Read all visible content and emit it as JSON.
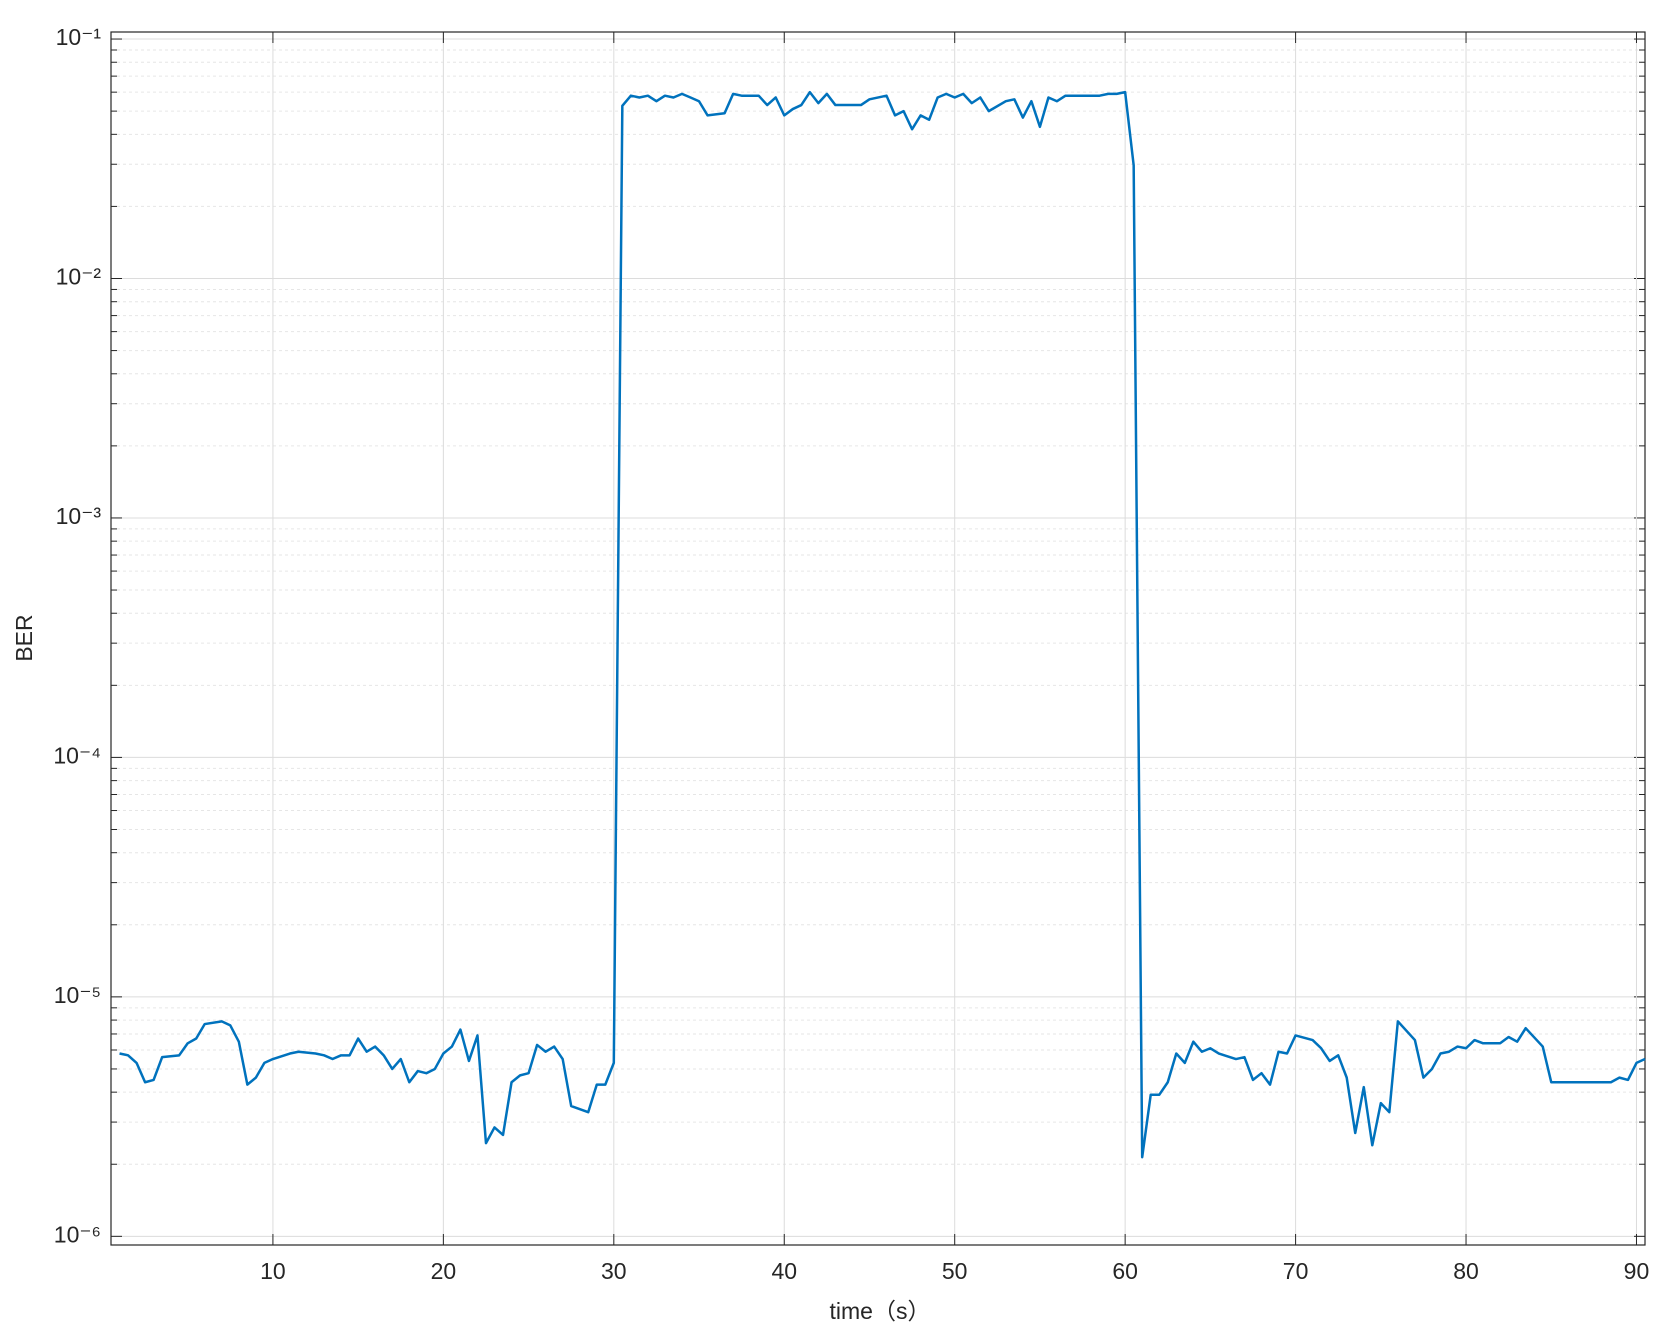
{
  "chart_data": {
    "type": "line",
    "xlabel": "time（s）",
    "ylabel": "BER",
    "log_y": true,
    "grid": true,
    "minor_grid": true,
    "xlim": [
      0.5,
      90.5
    ],
    "xticks": [
      10,
      20,
      30,
      40,
      50,
      60,
      70,
      80,
      90
    ],
    "ylim": [
      9.2e-07,
      0.107
    ],
    "yticks": [
      {
        "value": 1e-06,
        "label": "10⁻⁶"
      },
      {
        "value": 1e-05,
        "label": "10⁻⁵"
      },
      {
        "value": 0.0001,
        "label": "10⁻⁴"
      },
      {
        "value": 0.001,
        "label": "10⁻³"
      },
      {
        "value": 0.01,
        "label": "10⁻²"
      },
      {
        "value": 0.1,
        "label": "10⁻¹"
      }
    ],
    "x": [
      1.0,
      1.5,
      2.0,
      2.5,
      3.0,
      3.5,
      4.5,
      5.0,
      5.5,
      6.0,
      7.0,
      7.5,
      8.0,
      8.5,
      9.0,
      9.5,
      10.0,
      11.0,
      11.5,
      12.5,
      13.0,
      13.5,
      14.0,
      14.5,
      15.0,
      15.5,
      16.0,
      16.5,
      17.0,
      17.5,
      18.0,
      18.5,
      19.0,
      19.5,
      20.0,
      20.5,
      21.0,
      21.5,
      22.0,
      22.5,
      23.0,
      23.5,
      24.0,
      24.5,
      25.0,
      25.5,
      26.0,
      26.5,
      27.0,
      27.5,
      28.5,
      29.0,
      29.5,
      30.0,
      30.5,
      31.0,
      31.5,
      32.0,
      32.5,
      33.0,
      33.5,
      34.0,
      34.5,
      35.0,
      35.5,
      36.5,
      37.0,
      37.5,
      38.5,
      39.0,
      39.5,
      40.0,
      40.5,
      41.0,
      41.5,
      42.0,
      42.5,
      43.0,
      44.5,
      45.0,
      46.0,
      46.5,
      47.0,
      47.5,
      48.0,
      48.5,
      49.0,
      49.5,
      50.0,
      50.5,
      51.0,
      51.5,
      52.0,
      53.0,
      53.5,
      54.0,
      54.5,
      55.0,
      55.5,
      56.0,
      56.5,
      58.5,
      59.0,
      59.5,
      60.0,
      60.5,
      61.0,
      61.5,
      62.0,
      62.5,
      63.0,
      63.5,
      64.0,
      64.5,
      65.0,
      65.5,
      66.5,
      67.0,
      67.5,
      68.0,
      68.5,
      69.0,
      69.5,
      70.0,
      71.0,
      71.5,
      72.0,
      72.5,
      73.0,
      73.5,
      74.0,
      74.5,
      75.0,
      75.5,
      76.0,
      77.0,
      77.5,
      78.0,
      78.5,
      79.0,
      79.5,
      80.0,
      80.5,
      81.0,
      82.0,
      82.5,
      83.0,
      83.5,
      84.5,
      85.0,
      86.0,
      86.5,
      88.5,
      89.0,
      89.5,
      90.0,
      90.5
    ],
    "series": [
      {
        "color": "#0072bd",
        "values": [
          5.8e-06,
          5.7e-06,
          5.3e-06,
          4.4e-06,
          4.5e-06,
          5.6e-06,
          5.7e-06,
          6.4e-06,
          6.7e-06,
          7.7e-06,
          7.9e-06,
          7.6e-06,
          6.5e-06,
          4.3e-06,
          4.6e-06,
          5.3e-06,
          5.5e-06,
          5.8e-06,
          5.9e-06,
          5.8e-06,
          5.7e-06,
          5.5e-06,
          5.7e-06,
          5.7e-06,
          6.7e-06,
          5.9e-06,
          6.2e-06,
          5.7e-06,
          5e-06,
          5.5e-06,
          4.4e-06,
          4.9e-06,
          4.8e-06,
          5e-06,
          5.8e-06,
          6.2e-06,
          7.3e-06,
          5.4e-06,
          6.9e-06,
          2.45e-06,
          2.85e-06,
          2.65e-06,
          4.4e-06,
          4.7e-06,
          4.8e-06,
          6.3e-06,
          5.9e-06,
          6.2e-06,
          5.5e-06,
          3.5e-06,
          3.3e-06,
          4.3e-06,
          4.3e-06,
          5.3e-06,
          0.0526,
          0.058,
          0.057,
          0.058,
          0.055,
          0.058,
          0.057,
          0.059,
          0.057,
          0.055,
          0.048,
          0.049,
          0.059,
          0.058,
          0.058,
          0.053,
          0.057,
          0.048,
          0.051,
          0.053,
          0.06,
          0.054,
          0.059,
          0.053,
          0.053,
          0.056,
          0.058,
          0.048,
          0.05,
          0.042,
          0.048,
          0.046,
          0.057,
          0.059,
          0.057,
          0.059,
          0.054,
          0.057,
          0.05,
          0.055,
          0.056,
          0.047,
          0.055,
          0.043,
          0.057,
          0.055,
          0.058,
          0.058,
          0.059,
          0.059,
          0.06,
          0.0297,
          2.14e-06,
          3.9e-06,
          3.9e-06,
          4.4e-06,
          5.8e-06,
          5.3e-06,
          6.5e-06,
          5.9e-06,
          6.1e-06,
          5.8e-06,
          5.5e-06,
          5.6e-06,
          4.5e-06,
          4.8e-06,
          4.3e-06,
          5.9e-06,
          5.8e-06,
          6.9e-06,
          6.6e-06,
          6.1e-06,
          5.4e-06,
          5.7e-06,
          4.6e-06,
          2.7e-06,
          4.2e-06,
          2.4e-06,
          3.6e-06,
          3.3e-06,
          7.9e-06,
          6.6e-06,
          4.6e-06,
          5e-06,
          5.8e-06,
          5.9e-06,
          6.2e-06,
          6.1e-06,
          6.6e-06,
          6.4e-06,
          6.4e-06,
          6.8e-06,
          6.5e-06,
          7.4e-06,
          6.2e-06,
          4.4e-06,
          4.4e-06,
          4.4e-06,
          4.4e-06,
          4.6e-06,
          4.5e-06,
          5.3e-06,
          5.5e-06
        ]
      }
    ]
  }
}
